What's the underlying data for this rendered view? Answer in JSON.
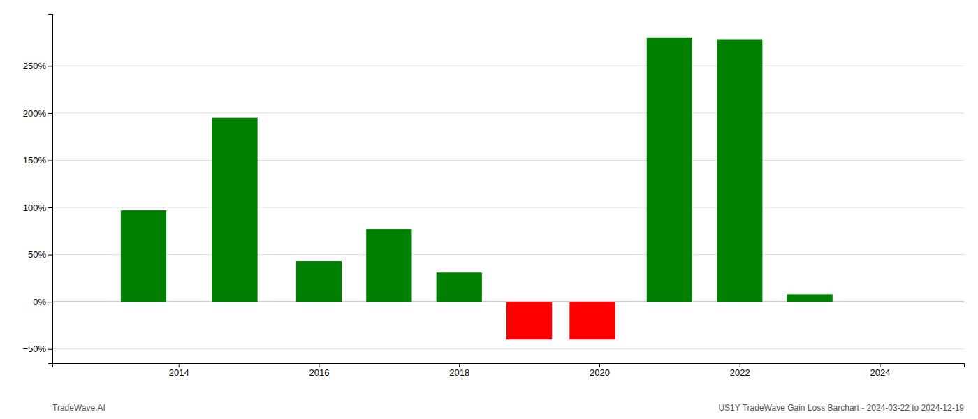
{
  "chart_data": {
    "type": "bar",
    "title": "US1Y TradeWave Gain Loss Barchart - 2024-03-22 to 2024-12-19",
    "subtitle": "TradeWave.AI",
    "x": [
      2013.5,
      2014.8,
      2016.0,
      2017.0,
      2018.0,
      2019.0,
      2019.9,
      2021.0,
      2022.0,
      2023.0
    ],
    "values": [
      97,
      195,
      43,
      77,
      31,
      -40,
      -40,
      280,
      278,
      8
    ],
    "colors": [
      "#008000",
      "#008000",
      "#008000",
      "#008000",
      "#008000",
      "#ff0000",
      "#ff0000",
      "#008000",
      "#008000",
      "#008000"
    ],
    "xlim": [
      2012.2,
      2025.2
    ],
    "xticks": [
      2014,
      2016,
      2018,
      2020,
      2022,
      2024
    ],
    "ylim": [
      -65,
      305
    ],
    "yticks": [
      {
        "value": -50,
        "label": "−50%"
      },
      {
        "value": 0,
        "label": "0%"
      },
      {
        "value": 50,
        "label": "50%"
      },
      {
        "value": 100,
        "label": "100%"
      },
      {
        "value": 150,
        "label": "150%"
      },
      {
        "value": 200,
        "label": "200%"
      },
      {
        "value": 250,
        "label": "250%"
      }
    ],
    "grid": true
  }
}
